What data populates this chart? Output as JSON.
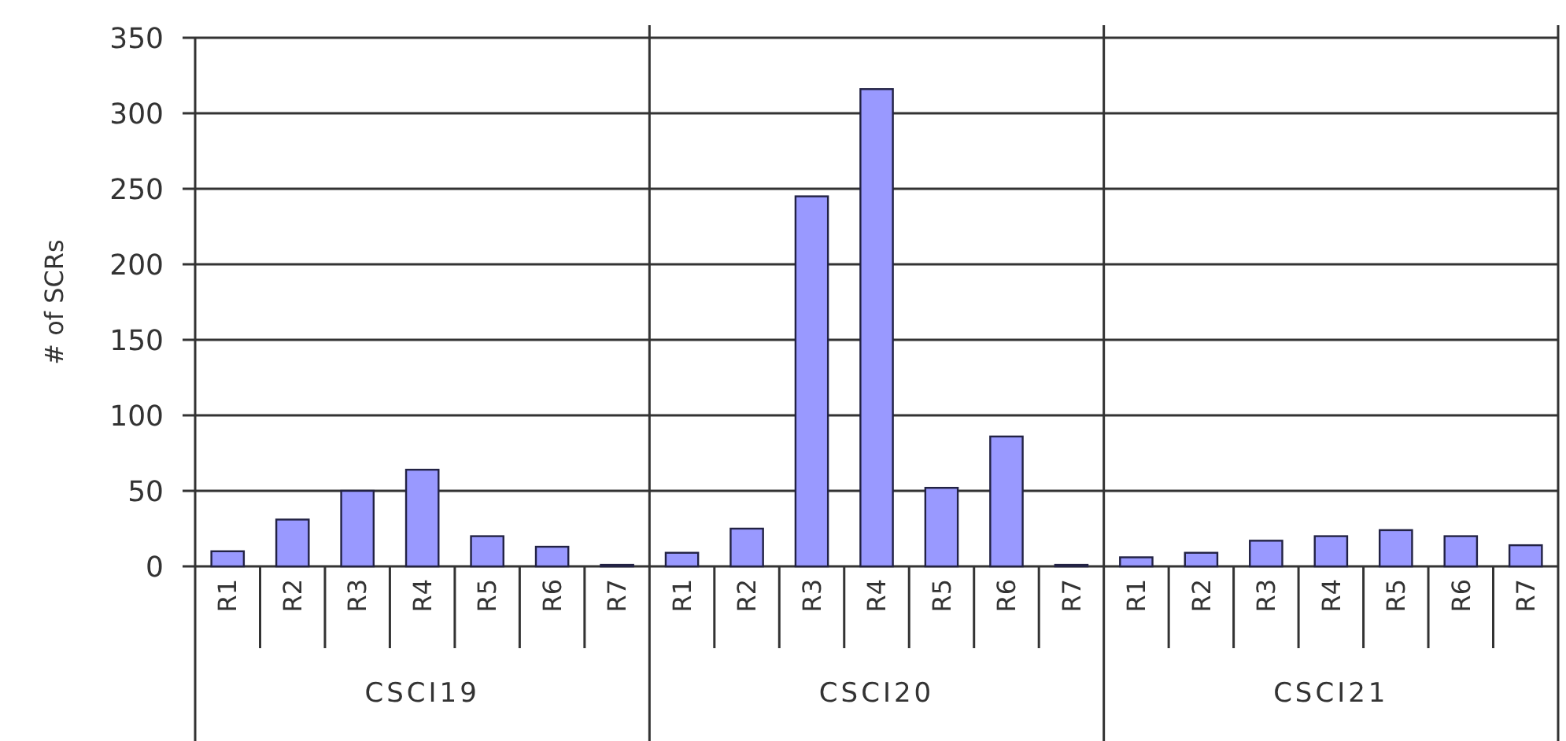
{
  "chart_data": {
    "type": "bar",
    "ylabel": "# of SCRs",
    "categories": [
      "R1",
      "R2",
      "R3",
      "R4",
      "R5",
      "R6",
      "R7",
      "R1",
      "R2",
      "R3",
      "R4",
      "R5",
      "R6",
      "R7",
      "R1",
      "R2",
      "R3",
      "R4",
      "R5",
      "R6",
      "R7"
    ],
    "values": [
      10,
      31,
      50,
      64,
      20,
      13,
      1,
      9,
      25,
      245,
      316,
      52,
      86,
      1,
      6,
      9,
      17,
      20,
      24,
      20,
      14
    ],
    "color": "#9999ff",
    "ylim": [
      0,
      350
    ],
    "yticks": [
      0,
      50,
      100,
      150,
      200,
      250,
      300,
      350
    ],
    "grid": "y",
    "annotations": [
      "CSCI19",
      "CSCI20",
      "CSCI21"
    ]
  }
}
